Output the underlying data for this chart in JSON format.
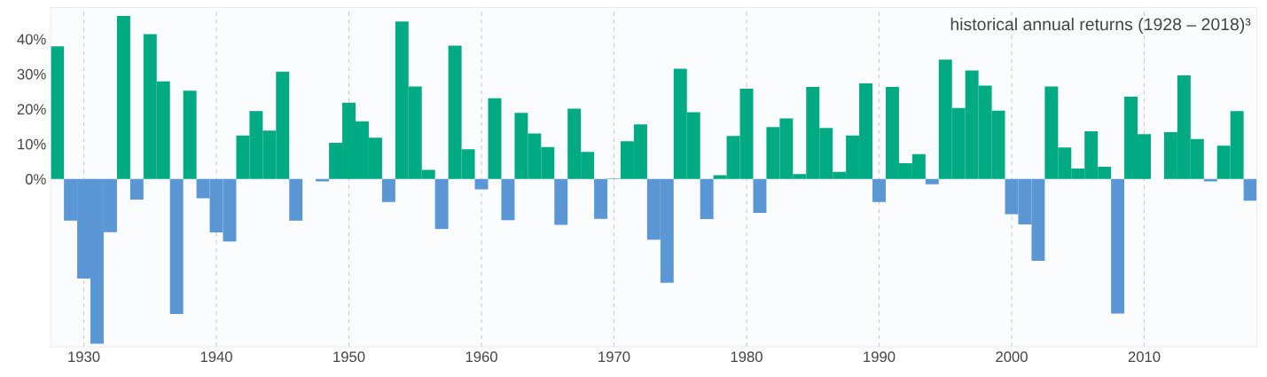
{
  "chart_data": {
    "type": "bar",
    "title": "historical annual returns (1928 – 2018)³",
    "x": [
      1928,
      1929,
      1930,
      1931,
      1932,
      1933,
      1934,
      1935,
      1936,
      1937,
      1938,
      1939,
      1940,
      1941,
      1942,
      1943,
      1944,
      1945,
      1946,
      1947,
      1948,
      1949,
      1950,
      1951,
      1952,
      1953,
      1954,
      1955,
      1956,
      1957,
      1958,
      1959,
      1960,
      1961,
      1962,
      1963,
      1964,
      1965,
      1966,
      1967,
      1968,
      1969,
      1970,
      1971,
      1972,
      1973,
      1974,
      1975,
      1976,
      1977,
      1978,
      1979,
      1980,
      1981,
      1982,
      1983,
      1984,
      1985,
      1986,
      1987,
      1988,
      1989,
      1990,
      1991,
      1992,
      1993,
      1994,
      1995,
      1996,
      1997,
      1998,
      1999,
      2000,
      2001,
      2002,
      2003,
      2004,
      2005,
      2006,
      2007,
      2008,
      2009,
      2010,
      2011,
      2012,
      2013,
      2014,
      2015,
      2016,
      2017,
      2018
    ],
    "values": [
      37.9,
      -11.9,
      -28.5,
      -47.1,
      -15.2,
      46.6,
      -5.9,
      41.4,
      27.9,
      -38.6,
      25.2,
      -5.5,
      -15.3,
      -17.9,
      12.4,
      19.4,
      13.8,
      30.7,
      -11.9,
      0.0,
      -0.7,
      10.3,
      21.8,
      16.5,
      11.8,
      -6.6,
      45.0,
      26.4,
      2.6,
      -14.3,
      38.1,
      8.5,
      -3.0,
      23.1,
      -11.8,
      18.9,
      13.0,
      9.1,
      -13.1,
      20.1,
      7.7,
      -11.4,
      0.1,
      10.8,
      15.6,
      -17.4,
      -29.7,
      31.5,
      19.1,
      -11.5,
      1.1,
      12.3,
      25.8,
      -9.7,
      14.8,
      17.3,
      1.4,
      26.3,
      14.6,
      2.0,
      12.4,
      27.3,
      -6.6,
      26.3,
      4.5,
      7.1,
      -1.5,
      34.1,
      20.3,
      31.0,
      26.7,
      19.5,
      -10.1,
      -13.0,
      -23.4,
      26.4,
      9.0,
      3.0,
      13.6,
      3.5,
      -38.5,
      23.5,
      12.8,
      0.0,
      13.4,
      29.6,
      11.4,
      -0.7,
      9.5,
      19.4,
      -6.2
    ],
    "colors": [
      "#00ab84",
      "#5b97d5",
      "#5b97d5",
      "#5b97d5",
      "#5b97d5",
      "#00ab84",
      "#5b97d5",
      "#00ab84",
      "#00ab84",
      "#5b97d5",
      "#00ab84",
      "#5b97d5",
      "#5b97d5",
      "#5b97d5",
      "#00ab84",
      "#00ab84",
      "#00ab84",
      "#00ab84",
      "#5b97d5",
      "#00ab84",
      "#5b97d5",
      "#00ab84",
      "#00ab84",
      "#00ab84",
      "#00ab84",
      "#5b97d5",
      "#00ab84",
      "#00ab84",
      "#00ab84",
      "#5b97d5",
      "#00ab84",
      "#00ab84",
      "#5b97d5",
      "#00ab84",
      "#5b97d5",
      "#00ab84",
      "#00ab84",
      "#00ab84",
      "#5b97d5",
      "#00ab84",
      "#00ab84",
      "#5b97d5",
      "#00ab84",
      "#00ab84",
      "#00ab84",
      "#5b97d5",
      "#5b97d5",
      "#00ab84",
      "#00ab84",
      "#5b97d5",
      "#00ab84",
      "#00ab84",
      "#00ab84",
      "#5b97d5",
      "#00ab84",
      "#00ab84",
      "#00ab84",
      "#00ab84",
      "#00ab84",
      "#00ab84",
      "#00ab84",
      "#00ab84",
      "#5b97d5",
      "#00ab84",
      "#00ab84",
      "#00ab84",
      "#5b97d5",
      "#00ab84",
      "#00ab84",
      "#00ab84",
      "#00ab84",
      "#00ab84",
      "#5b97d5",
      "#5b97d5",
      "#5b97d5",
      "#00ab84",
      "#00ab84",
      "#00ab84",
      "#00ab84",
      "#00ab84",
      "#5b97d5",
      "#00ab84",
      "#00ab84",
      "#00ab84",
      "#00ab84",
      "#00ab84",
      "#00ab84",
      "#5b97d5",
      "#00ab84",
      "#00ab84",
      "#5b97d5"
    ],
    "xlim": [
      1927.5,
      2018.5
    ],
    "xticks": [
      1930,
      1940,
      1950,
      1960,
      1970,
      1980,
      1990,
      2000,
      2010
    ],
    "ylim": [
      -48,
      49
    ],
    "yticks": [
      {
        "value": 0,
        "label": "0%"
      },
      {
        "value": 10,
        "label": "10%"
      },
      {
        "value": 20,
        "label": "20%"
      },
      {
        "value": 30,
        "label": "30%"
      },
      {
        "value": 40,
        "label": "40%"
      }
    ],
    "grid": "x"
  }
}
